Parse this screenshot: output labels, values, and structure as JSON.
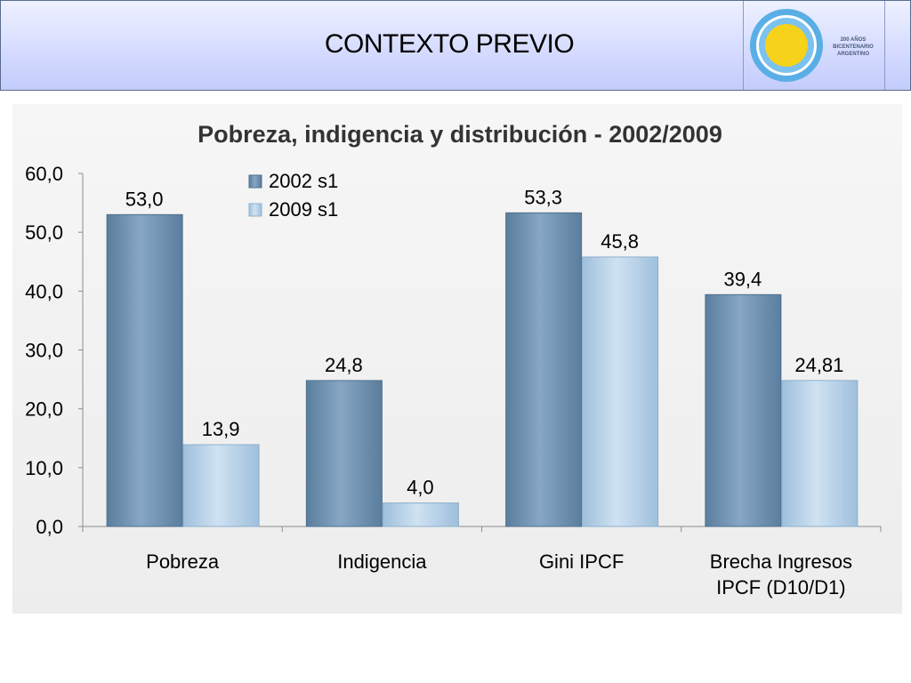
{
  "header": {
    "title": "CONTEXTO PREVIO",
    "logo_text": [
      "200 AÑOS",
      "BICENTENARIO",
      "ARGENTINO"
    ]
  },
  "colors": {
    "series_2002": "#6f93b3",
    "series_2009": "#b9d3e9",
    "text": "#000000",
    "axis": "#8c8c8c"
  },
  "chart_data": {
    "type": "bar",
    "title": "Pobreza, indigencia y distribución - 2002/2009",
    "categories": [
      "Pobreza",
      "Indigencia",
      "Gini IPCF",
      "Brecha Ingresos IPCF (D10/D1)"
    ],
    "series": [
      {
        "name": "2002 s1",
        "values": [
          53.0,
          24.8,
          53.3,
          39.4
        ],
        "labels": [
          "53,0",
          "24,8",
          "53,3",
          "39,4"
        ]
      },
      {
        "name": "2009 s1",
        "values": [
          13.9,
          4.0,
          45.8,
          24.81
        ],
        "labels": [
          "13,9",
          "4,0",
          "45,8",
          "24,81"
        ]
      }
    ],
    "yticks": [
      0,
      10,
      20,
      30,
      40,
      50,
      60
    ],
    "ytick_labels": [
      "0,0",
      "10,0",
      "20,0",
      "30,0",
      "40,0",
      "50,0",
      "60,0"
    ],
    "ylim": [
      0,
      60
    ],
    "xlabel": "",
    "ylabel": "",
    "legend": "top-center",
    "grid": false
  }
}
